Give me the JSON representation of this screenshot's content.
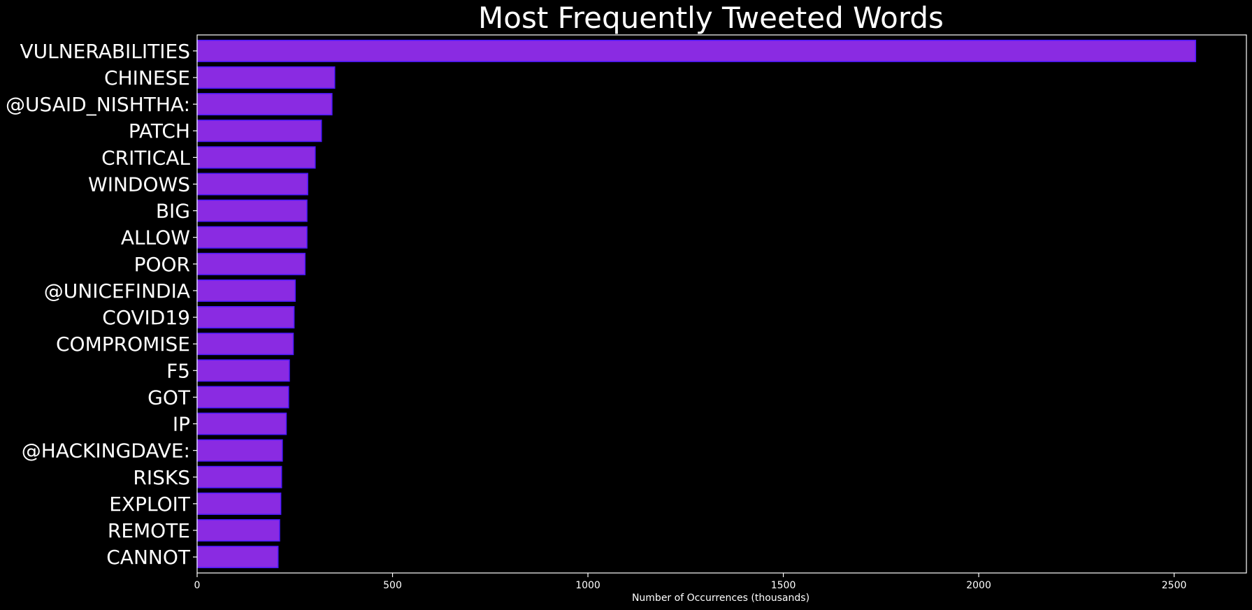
{
  "chart_data": {
    "type": "bar",
    "orientation": "horizontal",
    "title": "Most Frequently Tweeted Words",
    "xlabel": "Number of Occurrences (thousands)",
    "ylabel": "",
    "xlim": [
      0,
      2685
    ],
    "xticks": [
      0,
      500,
      1000,
      1500,
      2000,
      2500
    ],
    "grid": false,
    "legend": "none",
    "colors": {
      "bar_fill": "#8a2be2",
      "bar_edge": "#4b19ff",
      "background": "#000000",
      "text": "#ffffff"
    },
    "categories": [
      "VULNERABILITIES",
      "CHINESE",
      "@USAID_NISHTHA:",
      "PATCH",
      "CRITICAL",
      "WINDOWS",
      "BIG",
      "ALLOW",
      "POOR",
      "@UNICEFINDIA",
      "COVID19",
      "COMPROMISE",
      "F5",
      "GOT",
      "IP",
      "@HACKINGDAVE:",
      "RISKS",
      "EXPLOIT",
      "REMOTE",
      "CANNOT"
    ],
    "values": [
      2555,
      352,
      345,
      318,
      302,
      283,
      281,
      281,
      276,
      251,
      248,
      246,
      236,
      234,
      228,
      218,
      216,
      214,
      211,
      207
    ]
  }
}
